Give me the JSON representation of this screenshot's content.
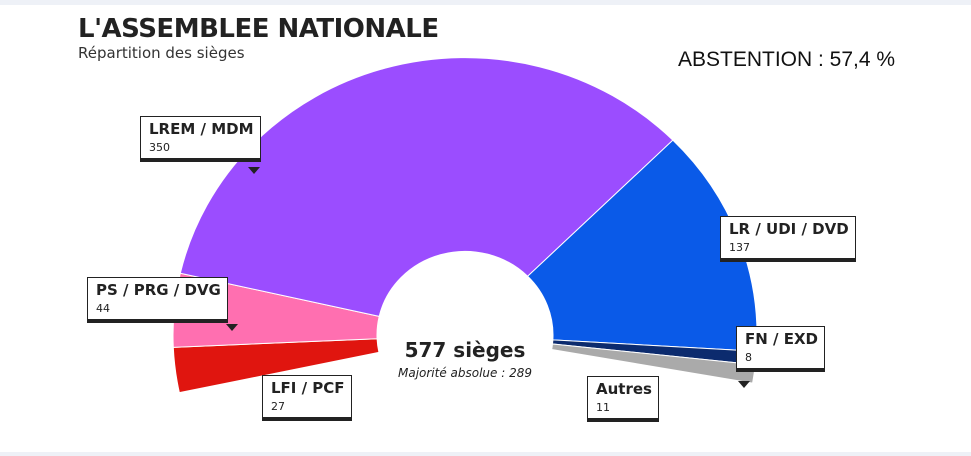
{
  "header": {
    "title": "L'ASSEMBLEE NATIONALE",
    "subtitle": "Répartition des sièges",
    "abstention": "ABSTENTION : 57,4 %"
  },
  "chart_data": {
    "type": "pie",
    "variant": "hemicycle",
    "title": "L'ASSEMBLEE NATIONALE",
    "subtitle": "Répartition des sièges",
    "total_label": "577 sièges",
    "majority_label": "Majorité absolue : 289",
    "total": 577,
    "slices": [
      {
        "name": "LFI / PCF",
        "value": 27,
        "color": "#e0150f"
      },
      {
        "name": "PS / PRG / DVG",
        "value": 44,
        "color": "#ff6fb0"
      },
      {
        "name": "LREM / MDM",
        "value": 350,
        "color": "#9b4dff"
      },
      {
        "name": "LR / UDI / DVD",
        "value": 137,
        "color": "#0a5ae8"
      },
      {
        "name": "FN / EXD",
        "value": 8,
        "color": "#0c2b6e"
      },
      {
        "name": "Autres",
        "value": 11,
        "color": "#aaaaaa"
      }
    ]
  }
}
